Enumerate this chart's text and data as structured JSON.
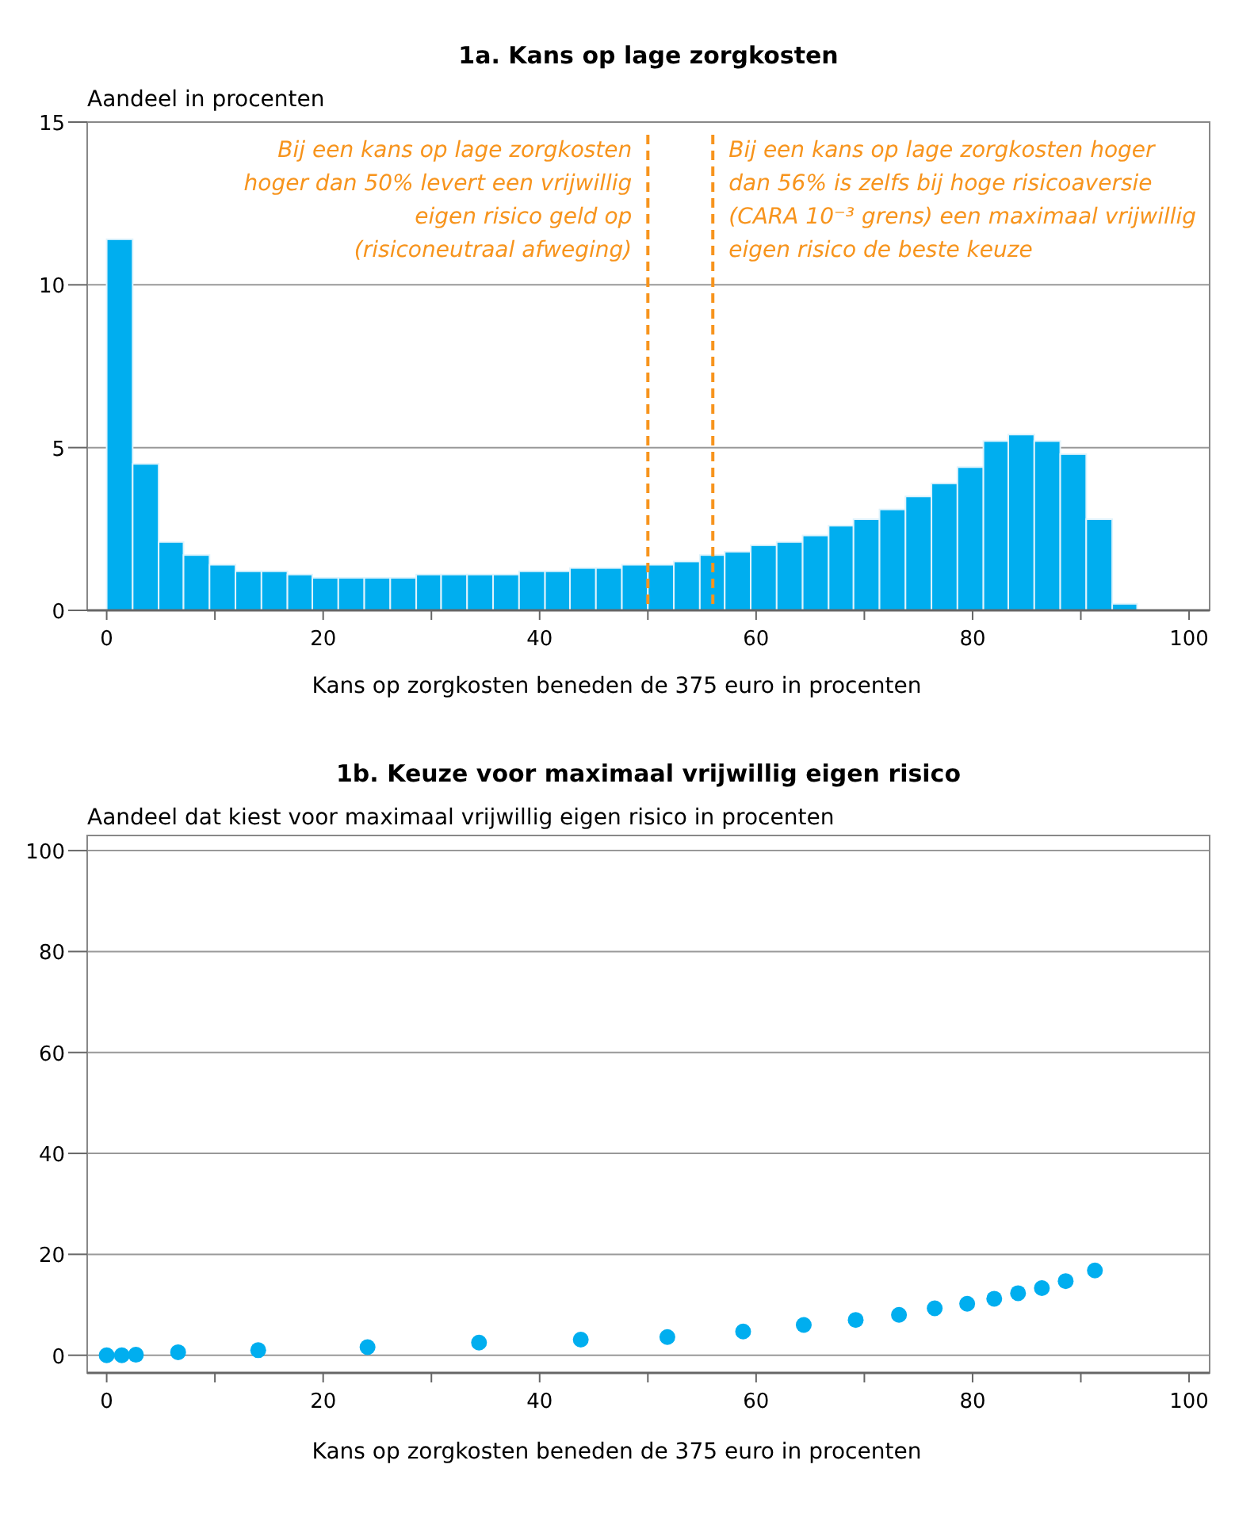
{
  "chart_data": [
    {
      "type": "histogram",
      "title": "1a. Kans op lage zorgkosten",
      "ylabel": "Aandeel in procenten",
      "xlabel": "Kans op zorgkosten beneden de 375 euro in procenten",
      "color": "#00aeef",
      "bins": [
        0,
        2.4,
        4.8,
        7.1,
        9.5,
        11.9,
        14.3,
        16.7,
        19,
        21.4,
        23.8,
        26.2,
        28.6,
        30.9,
        33.3,
        35.7,
        38.1,
        40.5,
        42.8,
        45.2,
        47.6,
        50,
        52.4,
        54.8,
        57.1,
        59.5,
        61.9,
        64.3,
        66.7,
        69,
        71.4,
        73.8,
        76.2,
        78.6,
        81,
        83.3,
        85.7,
        88.1,
        90.5,
        92.9,
        95.2
      ],
      "values": [
        11.4,
        4.5,
        2.1,
        1.7,
        1.4,
        1.2,
        1.2,
        1.1,
        1,
        1,
        1,
        1,
        1.1,
        1.1,
        1.1,
        1.1,
        1.2,
        1.2,
        1.3,
        1.3,
        1.4,
        1.4,
        1.5,
        1.7,
        1.8,
        2,
        2.1,
        2.3,
        2.6,
        2.8,
        3.1,
        3.5,
        3.9,
        4.4,
        5.2,
        5.4,
        5.2,
        4.8,
        2.8,
        0.2
      ],
      "xlim": [
        -1.8,
        101.9
      ],
      "xticks": [
        0,
        {
          "value": 10,
          "label": null
        },
        20,
        {
          "value": 30,
          "label": null
        },
        40,
        {
          "value": 50,
          "label": null
        },
        60,
        {
          "value": 70,
          "label": null
        },
        80,
        {
          "value": 90,
          "label": null
        },
        100
      ],
      "ylim": [
        0,
        15
      ],
      "yticks": [
        0,
        5,
        10,
        15
      ],
      "grid": "y",
      "ref_lines": [
        {
          "axis": "x",
          "value": 50,
          "color": "#f7941d",
          "line_style": "dashed",
          "label": "Bij een kans op lage zorgkosten\nhoger dan 50% levert een vrijwillig\neigen risico geld op\n(risiconeutraal afweging)"
        },
        {
          "axis": "x",
          "value": 56,
          "color": "#f7941d",
          "line_style": "dashed",
          "label": "Bij een kans op lage zorgkosten hoger\ndan 56% is zelfs bij hoge risicoaversie\n(CARA 10⁻³ grens) een maximaal vrijwillig\neigen risico de beste keuze"
        }
      ]
    },
    {
      "type": "scatter",
      "title": "1b. Keuze voor maximaal vrijwillig eigen risico",
      "ylabel": "Aandeel dat kiest voor maximaal vrijwillig eigen risico in procenten",
      "xlabel": "Kans op zorgkosten beneden de 375 euro in procenten",
      "color": "#00aeef",
      "marker": "circle",
      "x": [
        0,
        1.4,
        2.7,
        6.6,
        14,
        24.1,
        34.4,
        43.8,
        51.8,
        58.8,
        64.4,
        69.2,
        73.2,
        76.5,
        79.5,
        82,
        84.2,
        86.4,
        88.6,
        91.3
      ],
      "values": [
        0,
        0,
        0.1,
        0.6,
        1,
        1.6,
        2.5,
        3.1,
        3.6,
        4.7,
        6,
        7,
        8,
        9.3,
        10.2,
        11.2,
        12.3,
        13.3,
        14.7,
        16.8
      ],
      "xlim": [
        -1.8,
        101.9
      ],
      "xticks": [
        0,
        {
          "value": 10,
          "label": null
        },
        20,
        {
          "value": 30,
          "label": null
        },
        40,
        {
          "value": 50,
          "label": null
        },
        60,
        {
          "value": 70,
          "label": null
        },
        80,
        {
          "value": 90,
          "label": null
        },
        100
      ],
      "ylim": [
        -3.5,
        103
      ],
      "yticks": [
        0,
        20,
        40,
        60,
        80,
        100
      ],
      "grid": "y"
    }
  ]
}
